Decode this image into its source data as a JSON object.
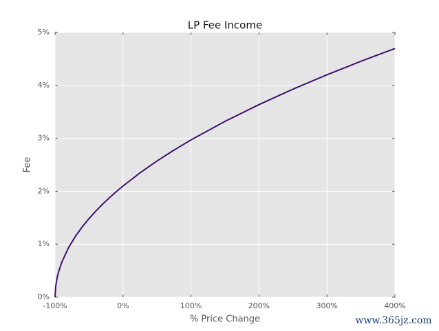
{
  "chart_data": {
    "type": "line",
    "title": "LP Fee Income",
    "x_label": "% Price Change",
    "y_label": "Fee",
    "x": [
      -100,
      -99,
      -97,
      -95,
      -90,
      -80,
      -70,
      -60,
      -50,
      -40,
      -30,
      -20,
      -10,
      0,
      25,
      50,
      75,
      100,
      150,
      200,
      250,
      300,
      350,
      400
    ],
    "series": [
      {
        "color": "#3f0f6e",
        "values": [
          0,
          0.21,
          0.364,
          0.47,
          0.664,
          0.939,
          1.15,
          1.328,
          1.485,
          1.627,
          1.757,
          1.878,
          1.992,
          2.1,
          2.348,
          2.572,
          2.778,
          2.97,
          3.32,
          3.637,
          3.929,
          4.2,
          4.455,
          4.696
        ]
      }
    ],
    "xlim": [
      -100,
      400
    ],
    "xticks": [
      {
        "value": -100,
        "label": "-100%"
      },
      {
        "value": 0,
        "label": "0%"
      },
      {
        "value": 100,
        "label": "100%"
      },
      {
        "value": 200,
        "label": "200%"
      },
      {
        "value": 300,
        "label": "300%"
      },
      {
        "value": 400,
        "label": "400%"
      }
    ],
    "ylim": [
      0,
      5
    ],
    "yticks": [
      {
        "value": 0,
        "label": "0%"
      },
      {
        "value": 1,
        "label": "1%"
      },
      {
        "value": 2,
        "label": "2%"
      },
      {
        "value": 3,
        "label": "3%"
      },
      {
        "value": 4,
        "label": "4%"
      },
      {
        "value": 5,
        "label": "5%"
      }
    ],
    "grid": true,
    "watermark": "www.365jz.com"
  }
}
